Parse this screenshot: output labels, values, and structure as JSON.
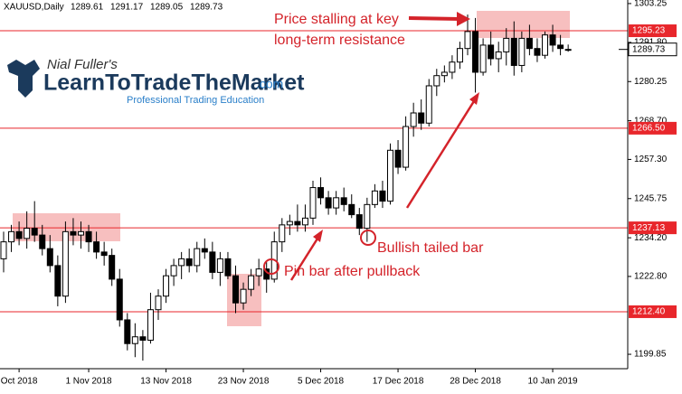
{
  "chart_data": {
    "type": "candlestick",
    "symbol": "XAUUSD,Daily",
    "up_color": "#ffffff",
    "down_color": "#000000",
    "level_color": "#e8262b",
    "ylim": [
      1195.6,
      1304.3
    ],
    "yticks": [
      1303.25,
      {
        "value": 1291.8,
        "label": "1291.80"
      },
      1280.25,
      {
        "value": 1268.7,
        "label": "1268.70"
      },
      {
        "value": 1257.3,
        "label": "1257.30"
      },
      1245.75,
      {
        "value": 1234.2,
        "label": "1234.20"
      },
      {
        "value": 1222.8,
        "label": "1222.80"
      },
      1199.85
    ],
    "levels": [
      1295.23,
      {
        "value": 1266.5,
        "label": "1266.50"
      },
      1237.13,
      {
        "value": 1212.4,
        "label": "1212.40"
      }
    ],
    "categories": [
      null,
      null,
      "Oct 2018",
      null,
      null,
      null,
      null,
      null,
      null,
      null,
      null,
      "1 Nov 2018",
      null,
      null,
      null,
      null,
      null,
      null,
      null,
      null,
      null,
      "13 Nov 2018",
      null,
      null,
      null,
      null,
      null,
      null,
      null,
      null,
      null,
      "23 Nov 2018",
      null,
      null,
      null,
      null,
      null,
      null,
      null,
      null,
      null,
      "5 Dec 2018",
      null,
      null,
      null,
      null,
      null,
      null,
      null,
      null,
      null,
      "17 Dec 2018",
      null,
      null,
      null,
      null,
      null,
      null,
      null,
      null,
      null,
      "28 Dec 2018",
      null,
      null,
      null,
      null,
      null,
      null,
      null,
      null,
      null,
      "10 Jan 2019",
      null,
      null
    ],
    "open": [
      1228,
      1233,
      1236,
      1234,
      1237,
      1235,
      1231,
      1226,
      1217,
      1236,
      1235,
      1236,
      1233,
      1230,
      1229,
      1222,
      1210,
      1203,
      1205,
      1204,
      1213,
      1217,
      1223,
      1226,
      1228,
      1226,
      1231,
      1230,
      1224,
      1228,
      1223,
      1215,
      1219,
      1223,
      1225,
      1222,
      1233,
      1238,
      1239,
      1238,
      1240,
      1249,
      1246,
      1243,
      1246,
      1244,
      1241,
      1237,
      1244,
      1248,
      1245,
      1260,
      1255,
      1267,
      1271,
      1268,
      1279,
      1282,
      1283,
      1286,
      1290,
      1295,
      1283,
      1291,
      1287,
      1289,
      1293,
      1285,
      1293,
      1290,
      1288,
      1294,
      1291,
      1289.61
    ],
    "high": [
      1236,
      1238,
      1239,
      1242,
      1245,
      1238,
      1235,
      1229,
      1239,
      1240,
      1239,
      1238,
      1236,
      1233,
      1231,
      1225,
      1212,
      1209,
      1207,
      1218,
      1219,
      1225,
      1228,
      1230,
      1231,
      1233,
      1234,
      1233,
      1230,
      1230,
      1226,
      1221,
      1225,
      1228,
      1227,
      1236,
      1240,
      1241,
      1244,
      1244,
      1251,
      1252,
      1248,
      1248,
      1249,
      1247,
      1243,
      1246,
      1250,
      1251,
      1262,
      1263,
      1270,
      1274,
      1275,
      1281,
      1284,
      1285,
      1288,
      1292,
      1300,
      1299,
      1293,
      1295,
      1292,
      1296,
      1298,
      1295,
      1297,
      1293,
      1295,
      1297,
      1294,
      1291.17
    ],
    "low": [
      1224,
      1230,
      1232,
      1231,
      1233,
      1229,
      1224,
      1214,
      1215,
      1232,
      1231,
      1230,
      1228,
      1226,
      1220,
      1208,
      1201,
      1199,
      1198,
      1203,
      1210,
      1215,
      1220,
      1222,
      1224,
      1224,
      1228,
      1222,
      1220,
      1222,
      1212,
      1213,
      1217,
      1220,
      1218,
      1221,
      1230,
      1235,
      1236,
      1236,
      1238,
      1244,
      1241,
      1241,
      1242,
      1240,
      1235,
      1233,
      1243,
      1243,
      1244,
      1253,
      1254,
      1264,
      1266,
      1267,
      1276,
      1280,
      1281,
      1284,
      1288,
      1277,
      1282,
      1285,
      1283,
      1285,
      1282,
      1283,
      1288,
      1286,
      1287,
      1289,
      1288,
      1289.05
    ],
    "close": [
      1233,
      1236,
      1234,
      1237,
      1235,
      1231,
      1226,
      1217,
      1236,
      1235,
      1236,
      1233,
      1230,
      1229,
      1222,
      1210,
      1203,
      1205,
      1204,
      1213,
      1217,
      1223,
      1226,
      1228,
      1226,
      1231,
      1230,
      1224,
      1228,
      1223,
      1215,
      1219,
      1223,
      1225,
      1222,
      1233,
      1238,
      1239,
      1238,
      1240,
      1249,
      1246,
      1243,
      1246,
      1244,
      1241,
      1237,
      1244,
      1248,
      1245,
      1260,
      1255,
      1267,
      1271,
      1268,
      1279,
      1282,
      1283,
      1286,
      1290,
      1295,
      1283,
      1291,
      1287,
      1289,
      1293,
      1285,
      1293,
      1290,
      1288,
      1294,
      1291,
      1290,
      1289.73
    ]
  },
  "annotations": {
    "resistance_1": "Price stalling at key",
    "resistance_2": "long-term resistance",
    "tailed": "Bullish tailed bar",
    "pinbar": "Pin bar after pullback"
  },
  "logo": {
    "author": "Nial Fuller's",
    "brand": "LearnToTradeTheMarket",
    "tld": ".com",
    "tagline": "Professional Trading Education"
  }
}
